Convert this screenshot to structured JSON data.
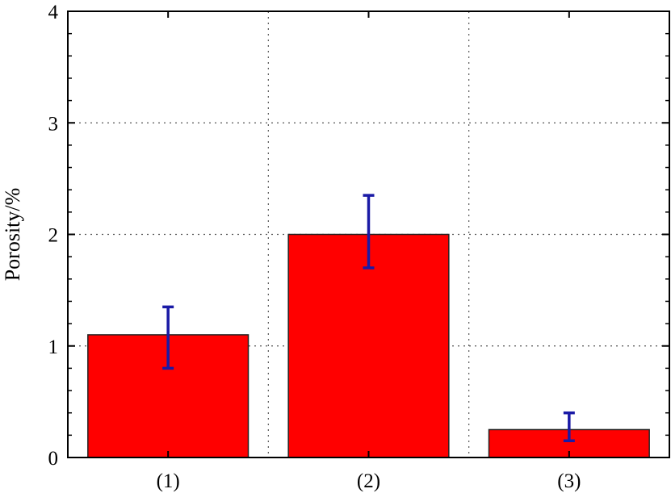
{
  "chart_data": {
    "type": "bar",
    "title": "",
    "xlabel": "",
    "ylabel": "Porosity/%",
    "categories": [
      "(1)",
      "(2)",
      "(3)"
    ],
    "values": [
      1.1,
      2.0,
      0.25
    ],
    "error_bars": [
      {
        "low": 0.8,
        "high": 1.35
      },
      {
        "low": 1.7,
        "high": 2.35
      },
      {
        "low": 0.15,
        "high": 0.4
      }
    ],
    "ylim": [
      0,
      4
    ],
    "yticks": [
      "0",
      "1",
      "2",
      "3",
      "4"
    ],
    "grid": true,
    "colors": {
      "bar": "#ff0000",
      "bar_edge": "#222222",
      "error_bar": "#1a1aa6"
    }
  }
}
